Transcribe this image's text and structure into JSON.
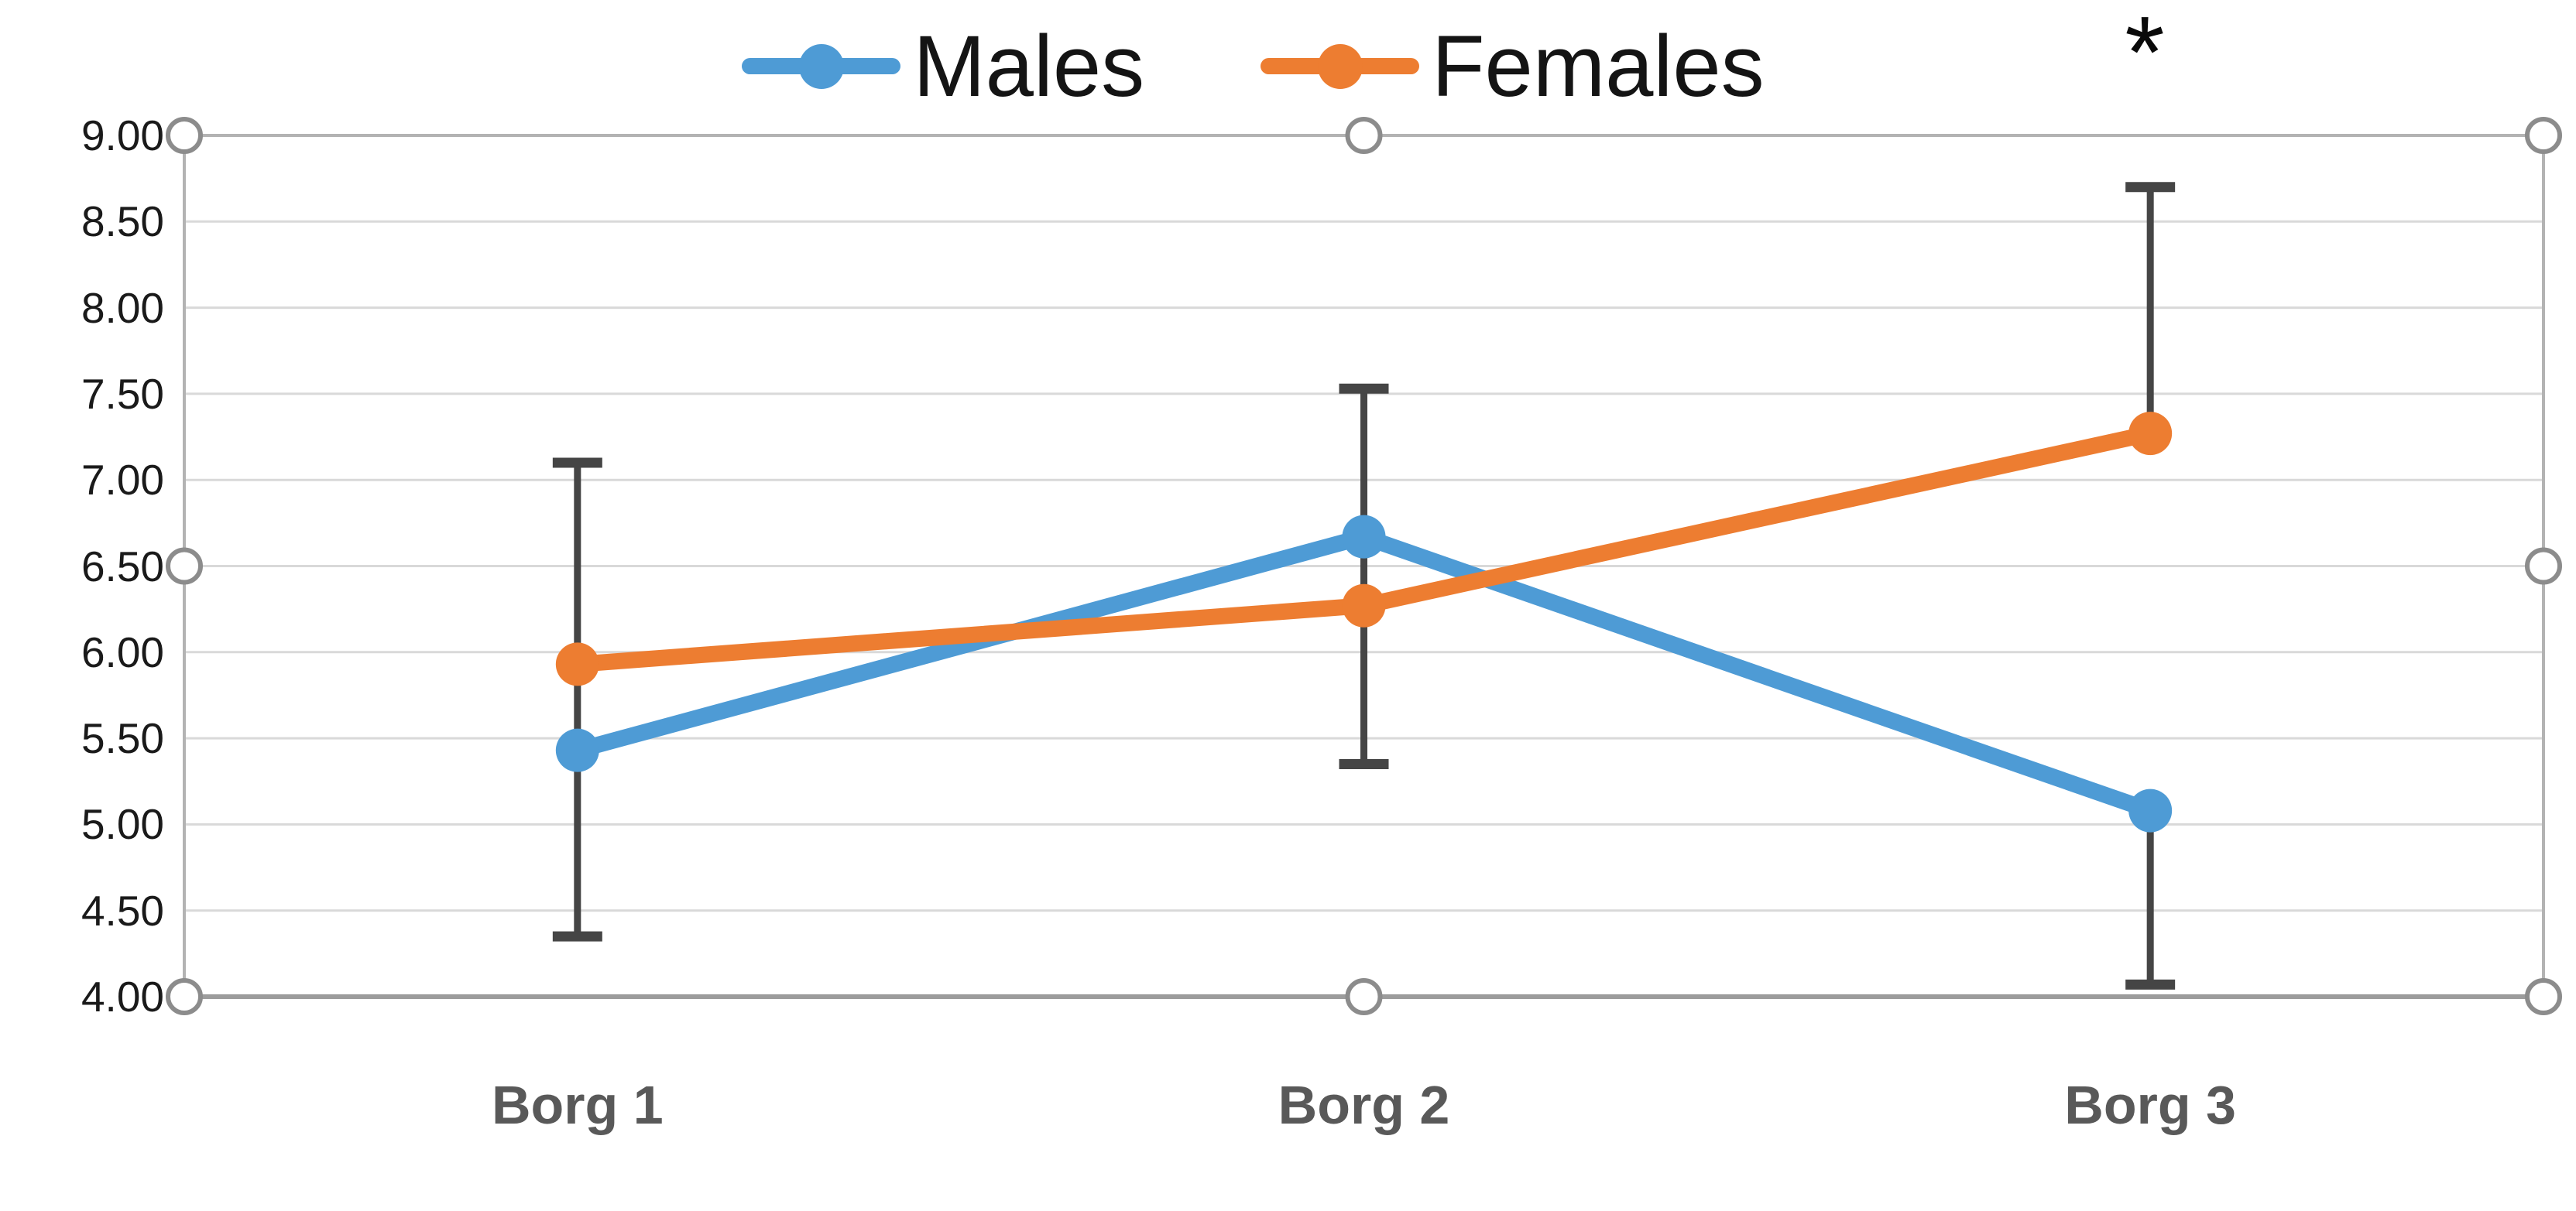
{
  "legend": {
    "items": [
      {
        "label": "Males",
        "color": "#4E9BD5"
      },
      {
        "label": "Females",
        "color": "#ED7D31"
      }
    ]
  },
  "annotation": {
    "significance_marker": "*"
  },
  "colors": {
    "males": "#4E9BD5",
    "females": "#ED7D31",
    "error_bar": "#454545",
    "gridline": "#D9D9D9",
    "plot_border": "#B3B3B3",
    "axis_line": "#9C9C9C",
    "y_label": "#1A1A1A",
    "category_label": "#595959",
    "handle_ring": "#8C8C8C",
    "handle_fill": "#FFFFFF",
    "background": "#FFFFFF"
  },
  "chart_data": {
    "type": "line",
    "categories": [
      "Borg 1",
      "Borg 2",
      "Borg 3"
    ],
    "series": [
      {
        "name": "Males",
        "color": "#4E9BD5",
        "values": [
          5.43,
          6.67,
          5.08
        ]
      },
      {
        "name": "Females",
        "color": "#ED7D31",
        "values": [
          5.93,
          6.27,
          7.27
        ]
      }
    ],
    "error_bars": [
      {
        "category": "Borg 1",
        "segments": [
          {
            "low": 4.35,
            "high": 7.1,
            "caps": "both"
          }
        ]
      },
      {
        "category": "Borg 2",
        "segments": [
          {
            "low": 5.35,
            "high": 7.53,
            "caps": "both"
          }
        ]
      },
      {
        "category": "Borg 3",
        "segments": [
          {
            "low": 7.27,
            "high": 8.7,
            "caps": "top"
          },
          {
            "low": 4.07,
            "high": 5.08,
            "caps": "bottom"
          }
        ]
      }
    ],
    "ylim": [
      4.0,
      9.0
    ],
    "y_tick_step": 0.5,
    "y_tick_labels": [
      "9.00",
      "8.50",
      "8.00",
      "7.50",
      "7.00",
      "6.50",
      "6.00",
      "5.50",
      "5.00",
      "4.50",
      "4.00"
    ],
    "xlabel": "",
    "ylabel": "",
    "title": "",
    "grid": true,
    "legend_position": "top-center",
    "selection_handles_visible": true
  }
}
